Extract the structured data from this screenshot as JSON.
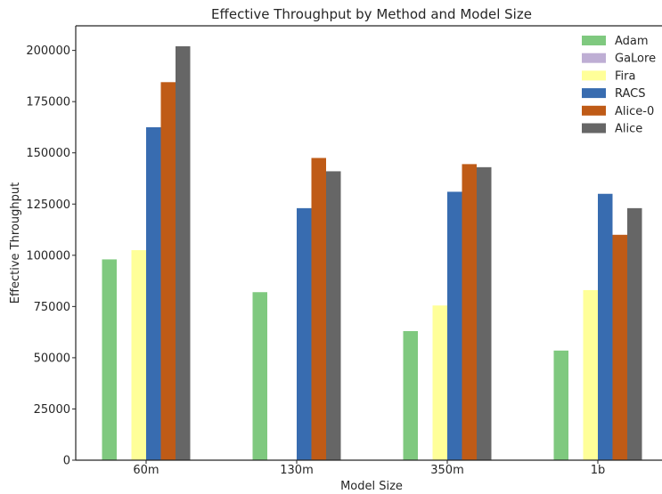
{
  "chart_data": {
    "type": "bar",
    "title": "Effective Throughput by Method and Model Size",
    "xlabel": "Model Size",
    "ylabel": "Effective Throughput",
    "categories": [
      "60m",
      "130m",
      "350m",
      "1b"
    ],
    "ylim": [
      0,
      212000
    ],
    "yticks": [
      0,
      25000,
      50000,
      75000,
      100000,
      125000,
      150000,
      175000,
      200000
    ],
    "grid": false,
    "legend_position": "top-right",
    "series": [
      {
        "name": "Adam",
        "color": "#7fc97f",
        "values": [
          98000,
          82000,
          63000,
          53500
        ]
      },
      {
        "name": "GaLore",
        "color": "#beaed4",
        "values": [
          0,
          0,
          0,
          0
        ]
      },
      {
        "name": "Fira",
        "color": "#ffff99",
        "values": [
          102500,
          0,
          75500,
          83000
        ]
      },
      {
        "name": "RACS",
        "color": "#386cb0",
        "values": [
          162500,
          123000,
          131000,
          130000
        ]
      },
      {
        "name": "Alice-0",
        "color": "#bf5b17",
        "values": [
          184500,
          147500,
          144500,
          110000
        ]
      },
      {
        "name": "Alice",
        "color": "#666666",
        "values": [
          202000,
          141000,
          143000,
          123000
        ]
      }
    ]
  }
}
